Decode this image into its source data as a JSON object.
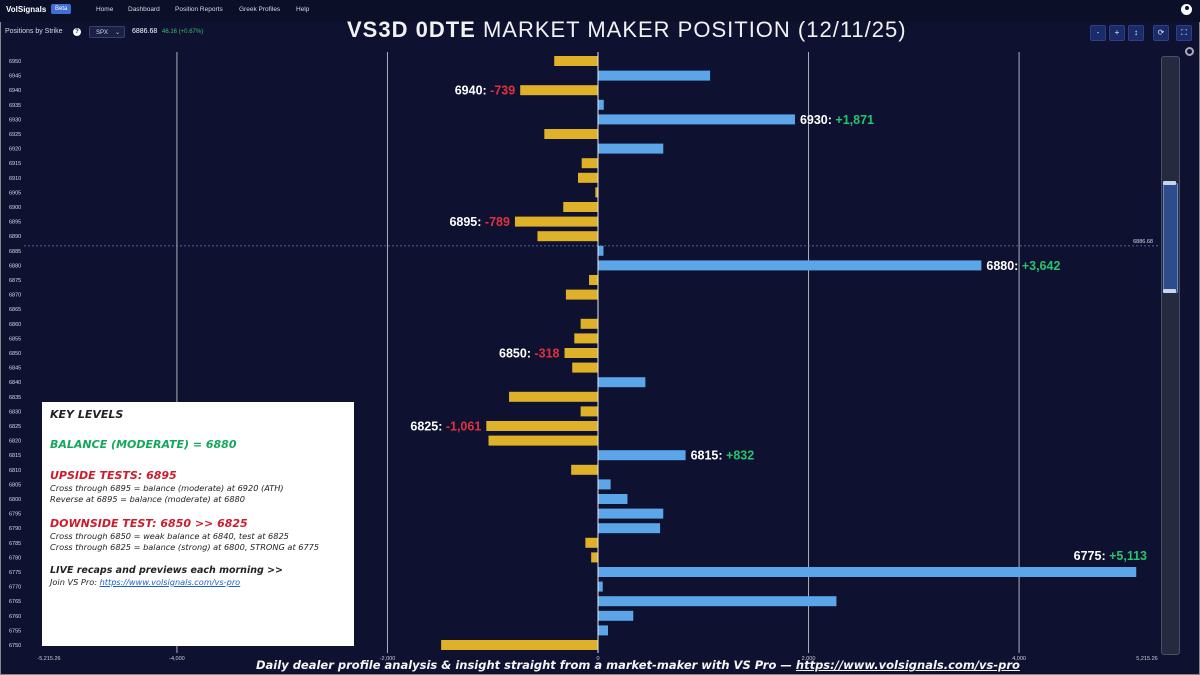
{
  "nav": {
    "brand": "VolSignals",
    "beta": "Beta",
    "items": [
      "Home",
      "Dashboard",
      "Position Reports",
      "Greek Profiles",
      "Help"
    ]
  },
  "toolbar": {
    "label": "Positions by Strike",
    "info": "?",
    "symbol": "SPX",
    "price": "6886.68",
    "change": "46.16 (+0.67%)",
    "buttons": [
      "-",
      "+",
      "↕",
      "⟳",
      "⛶"
    ]
  },
  "title": {
    "bold": "VS3D 0DTE",
    "rest": " MARKET MAKER POSITION (12/11/25)"
  },
  "chart_data": {
    "type": "bar",
    "orientation": "horizontal",
    "categories": [
      "6950",
      "6945",
      "6940",
      "6935",
      "6930",
      "6925",
      "6920",
      "6915",
      "6910",
      "6905",
      "6900",
      "6895",
      "6890",
      "6885",
      "6880",
      "6875",
      "6870",
      "6865",
      "6860",
      "6855",
      "6850",
      "6845",
      "6840",
      "6835",
      "6830",
      "6825",
      "6820",
      "6815",
      "6810",
      "6805",
      "6800",
      "6795",
      "6790",
      "6785",
      "6780",
      "6775",
      "6770",
      "6765",
      "6760",
      "6755",
      "6750"
    ],
    "values": [
      -416,
      1065,
      -739,
      55,
      1871,
      -510,
      620,
      -155,
      -190,
      -25,
      -330,
      -789,
      -575,
      52,
      3642,
      -85,
      -305,
      0,
      -165,
      -225,
      -318,
      -245,
      450,
      -845,
      -165,
      -1061,
      -1040,
      832,
      -255,
      120,
      280,
      620,
      590,
      -120,
      -65,
      5113,
      45,
      2265,
      335,
      95,
      -1490
    ],
    "xlim": [
      -5215.26,
      5215.26
    ],
    "x_ticks": [
      "-5,215.26",
      "-4,000",
      "-2,000",
      "0",
      "2,000",
      "4,000",
      "5,215.26"
    ],
    "current_price": "6886.68",
    "annotations": [
      {
        "strike": "6940",
        "label": "6940: ",
        "value": "-739",
        "sign": "neg"
      },
      {
        "strike": "6930",
        "label": "6930: ",
        "value": "+1,871",
        "sign": "pos"
      },
      {
        "strike": "6895",
        "label": "6895: ",
        "value": "-789",
        "sign": "neg"
      },
      {
        "strike": "6880",
        "label": "6880: ",
        "value": "+3,642",
        "sign": "pos"
      },
      {
        "strike": "6850",
        "label": "6850: ",
        "value": "-318",
        "sign": "neg"
      },
      {
        "strike": "6825",
        "label": "6825: ",
        "value": "-1,061",
        "sign": "neg"
      },
      {
        "strike": "6815",
        "label": "6815: ",
        "value": "+832",
        "sign": "pos"
      },
      {
        "strike": "6775",
        "label": "6775: ",
        "value": "+5,113",
        "sign": "pos"
      }
    ],
    "colors": {
      "positive": "#5aa6e8",
      "negative": "#dfb128",
      "pos_text": "#27c46b",
      "neg_text": "#e03040",
      "grid": "#c8cbd6"
    }
  },
  "key_levels": {
    "heading": "KEY LEVELS",
    "balance": "BALANCE (MODERATE) = 6880",
    "upside_heading": "UPSIDE TESTS: 6895",
    "upside_lines": [
      "Cross through 6895 = balance (moderate) at 6920 (ATH)",
      "Reverse at 6895 = balance (moderate) at 6880"
    ],
    "downside_heading": "DOWNSIDE TEST: 6850 >> 6825",
    "downside_lines": [
      "Cross through 6850 = weak balance at 6840, test at 6825",
      "Cross through 6825 = balance (strong) at 6800, STRONG at 6775"
    ],
    "live": "LIVE recaps and previews each morning >>",
    "join_prefix": "Join VS Pro: ",
    "join_link": "https://www.volsignals.com/vs-pro"
  },
  "footer": {
    "text": "Daily dealer profile analysis & insight straight from a market-maker with VS Pro — ",
    "link": "https://www.volsignals.com/vs-pro"
  }
}
